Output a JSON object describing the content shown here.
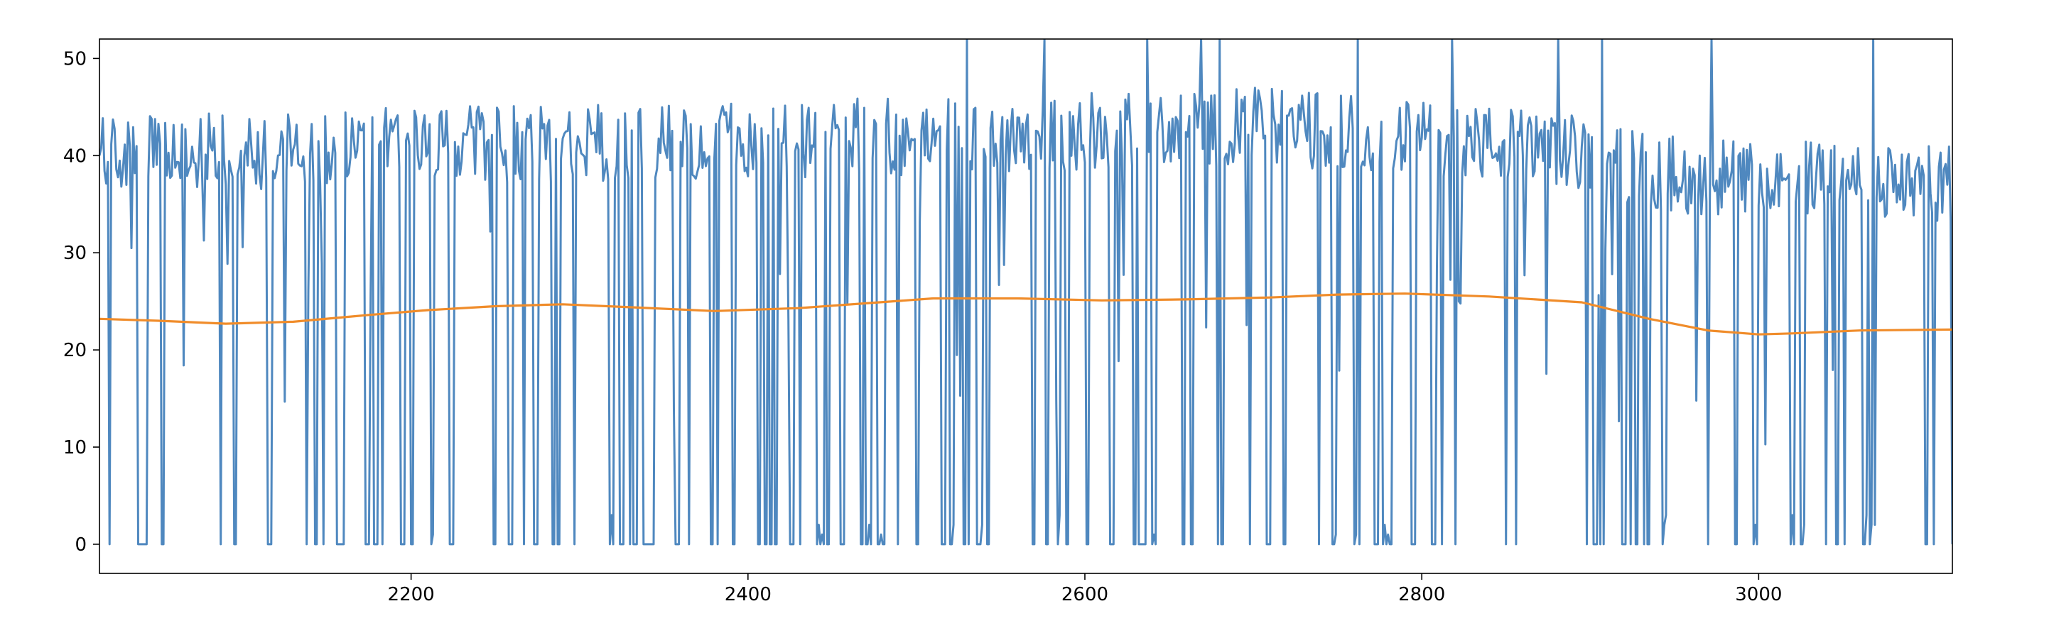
{
  "chart_data": {
    "type": "line",
    "title": "",
    "xlabel": "",
    "ylabel": "",
    "xlim": [
      2015,
      3115
    ],
    "ylim": [
      -3,
      52
    ],
    "x_ticks": [
      2200,
      2400,
      2600,
      2800,
      3000
    ],
    "x_tick_labels": [
      "2200",
      "2400",
      "2600",
      "2800",
      "3000"
    ],
    "y_ticks": [
      0,
      10,
      20,
      30,
      40,
      50
    ],
    "y_tick_labels": [
      "0",
      "10",
      "20",
      "30",
      "40",
      "50"
    ],
    "grid": false,
    "legend": "none",
    "series": [
      {
        "color": "#4f88bf",
        "style": "raw",
        "x_start": 2015,
        "x_end": 3115,
        "points": 1101,
        "typical_high_range": [
          34,
          47
        ],
        "drop_value": 0,
        "drop_probability": 0.28,
        "spike_peaks": [
          {
            "x": 2530,
            "y": 52
          },
          {
            "x": 2576,
            "y": 52
          },
          {
            "x": 2637,
            "y": 52
          },
          {
            "x": 2669,
            "y": 52
          },
          {
            "x": 2680,
            "y": 52
          },
          {
            "x": 2762,
            "y": 52
          },
          {
            "x": 2818,
            "y": 52
          },
          {
            "x": 2881,
            "y": 52
          },
          {
            "x": 2907,
            "y": 52
          },
          {
            "x": 2972,
            "y": 52
          },
          {
            "x": 3068,
            "y": 52
          }
        ],
        "segment_means": [
          {
            "x": 2015,
            "y": 40
          },
          {
            "x": 2200,
            "y": 41
          },
          {
            "x": 2500,
            "y": 42
          },
          {
            "x": 2700,
            "y": 43
          },
          {
            "x": 2800,
            "y": 42
          },
          {
            "x": 2900,
            "y": 40
          },
          {
            "x": 2950,
            "y": 38
          },
          {
            "x": 3115,
            "y": 37
          }
        ]
      },
      {
        "color": "#f08c2a",
        "style": "smoothed",
        "x": [
          2015,
          2050,
          2090,
          2130,
          2175,
          2210,
          2250,
          2290,
          2330,
          2380,
          2430,
          2470,
          2510,
          2560,
          2610,
          2660,
          2710,
          2750,
          2790,
          2840,
          2895,
          2935,
          2970,
          3000,
          3020,
          3060,
          3115
        ],
        "y": [
          23.2,
          23.0,
          22.7,
          22.9,
          23.6,
          24.1,
          24.5,
          24.7,
          24.4,
          24.0,
          24.3,
          24.8,
          25.3,
          25.3,
          25.1,
          25.2,
          25.4,
          25.7,
          25.8,
          25.5,
          24.9,
          23.2,
          22.0,
          21.6,
          21.7,
          22.0,
          22.1
        ]
      }
    ]
  }
}
